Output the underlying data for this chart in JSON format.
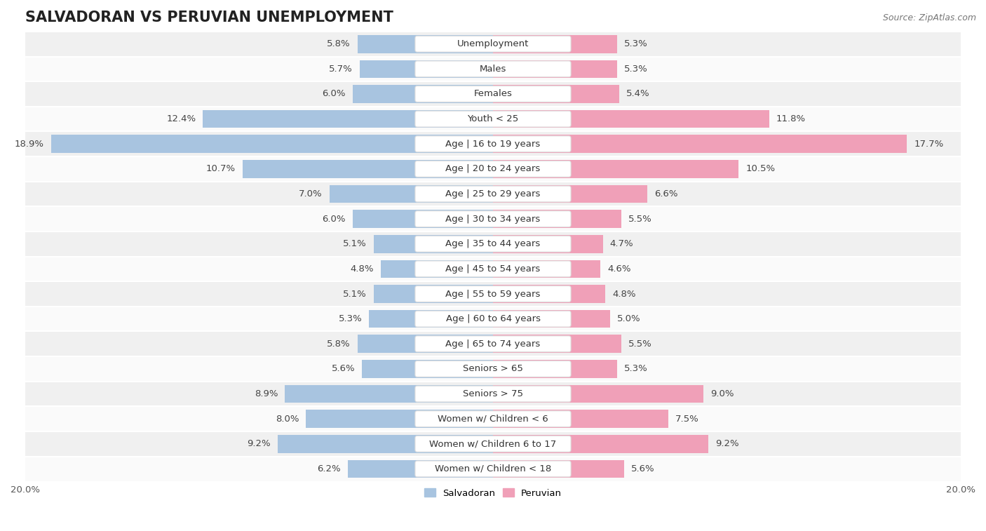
{
  "title": "SALVADORAN VS PERUVIAN UNEMPLOYMENT",
  "source": "Source: ZipAtlas.com",
  "categories": [
    "Unemployment",
    "Males",
    "Females",
    "Youth < 25",
    "Age | 16 to 19 years",
    "Age | 20 to 24 years",
    "Age | 25 to 29 years",
    "Age | 30 to 34 years",
    "Age | 35 to 44 years",
    "Age | 45 to 54 years",
    "Age | 55 to 59 years",
    "Age | 60 to 64 years",
    "Age | 65 to 74 years",
    "Seniors > 65",
    "Seniors > 75",
    "Women w/ Children < 6",
    "Women w/ Children 6 to 17",
    "Women w/ Children < 18"
  ],
  "salvadoran": [
    5.8,
    5.7,
    6.0,
    12.4,
    18.9,
    10.7,
    7.0,
    6.0,
    5.1,
    4.8,
    5.1,
    5.3,
    5.8,
    5.6,
    8.9,
    8.0,
    9.2,
    6.2
  ],
  "peruvian": [
    5.3,
    5.3,
    5.4,
    11.8,
    17.7,
    10.5,
    6.6,
    5.5,
    4.7,
    4.6,
    4.8,
    5.0,
    5.5,
    5.3,
    9.0,
    7.5,
    9.2,
    5.6
  ],
  "salvadoran_color": "#a8c4e0",
  "peruvian_color": "#f0a0b8",
  "row_bg_odd": "#f0f0f0",
  "row_bg_even": "#fafafa",
  "row_separator": "#ffffff",
  "xlim": 20.0,
  "bar_height": 0.72,
  "title_fontsize": 15,
  "label_fontsize": 9.5,
  "tick_fontsize": 9.5,
  "source_fontsize": 9,
  "pill_fontsize": 9.5
}
